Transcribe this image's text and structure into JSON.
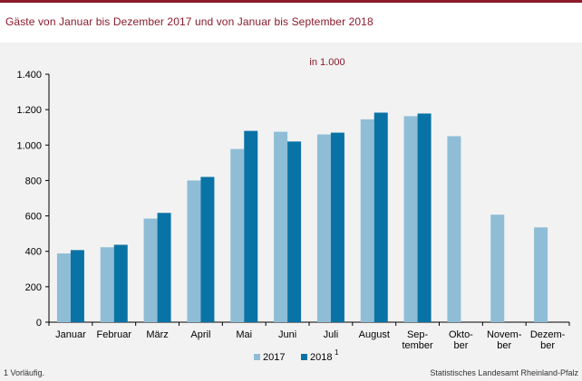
{
  "title": "Gäste von Januar bis Dezember 2017 und von Januar bis September 2018",
  "footnote": "1 Vorläufig.",
  "source": "Statistisches Landesamt Rheinland-Pfalz",
  "chart_data": {
    "type": "bar",
    "unit_label": "in 1.000",
    "categories": [
      [
        "Januar"
      ],
      [
        "Februar"
      ],
      [
        "März"
      ],
      [
        "April"
      ],
      [
        "Mai"
      ],
      [
        "Juni"
      ],
      [
        "Juli"
      ],
      [
        "August"
      ],
      [
        "Sep-",
        "tember"
      ],
      [
        "Okto-",
        "ber"
      ],
      [
        "Novem-",
        "ber"
      ],
      [
        "Dezem-",
        "ber"
      ]
    ],
    "series": [
      {
        "name": "2017",
        "superscript": "",
        "color": "#8fbdd6",
        "values": [
          388,
          423,
          585,
          800,
          978,
          1075,
          1060,
          1145,
          1163,
          1050,
          607,
          535
        ]
      },
      {
        "name": "2018",
        "superscript": "1",
        "color": "#0a73a6",
        "values": [
          407,
          437,
          617,
          820,
          1080,
          1020,
          1070,
          1183,
          1178,
          null,
          null,
          null
        ]
      }
    ],
    "ylim": [
      0,
      1400
    ],
    "yticks": [
      0,
      200,
      400,
      600,
      800,
      1000,
      1200,
      1400
    ],
    "ytick_labels": [
      "0",
      "200",
      "400",
      "600",
      "800",
      "1.000",
      "1.200",
      "1.400"
    ],
    "grid": false,
    "legend_position": "bottom-center"
  }
}
